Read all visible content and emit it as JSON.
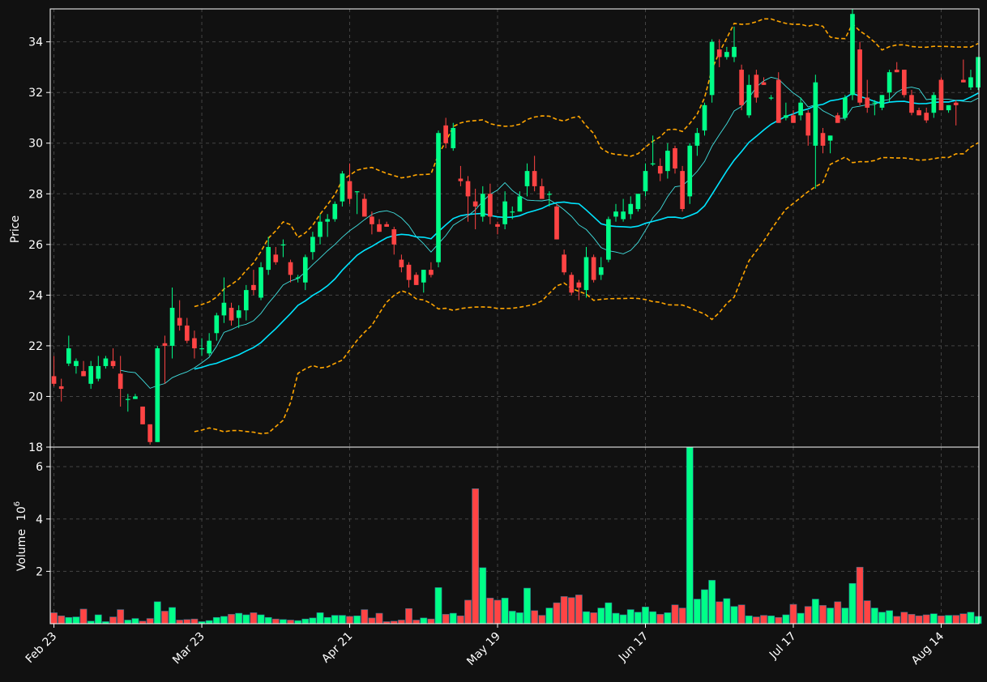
{
  "chart_data": {
    "type": "candlestick",
    "colors": {
      "background": "#111111",
      "up": "#00ff88",
      "down": "#ff4444",
      "grid": "#444444",
      "bollinger": "#ffa500",
      "ma_fast": "#40e0e0",
      "ma_slow": "#00e5ff",
      "axis": "#ffffff"
    },
    "price_axis": {
      "label": "Price",
      "ylim": [
        18,
        35.3
      ],
      "ticks": [
        18,
        20,
        22,
        24,
        26,
        28,
        30,
        32,
        34
      ]
    },
    "volume_axis": {
      "label": "Volume",
      "exponent_label": "10",
      "exponent": "6",
      "ylim": [
        0,
        6.5
      ],
      "ticks": [
        2,
        4,
        6
      ]
    },
    "x_axis": {
      "tick_labels": [
        {
          "label": "Feb 23",
          "index": 0
        },
        {
          "label": "Mar 23",
          "index": 20
        },
        {
          "label": "Apr 21",
          "index": 40
        },
        {
          "label": "May 19",
          "index": 60
        },
        {
          "label": "Jun 17",
          "index": 80
        },
        {
          "label": "Jul 17",
          "index": 100
        },
        {
          "label": "Aug 14",
          "index": 120
        }
      ]
    },
    "grid": true,
    "ohlc": [
      [
        20.8,
        21.6,
        20.4,
        20.5
      ],
      [
        20.4,
        20.7,
        19.8,
        20.3
      ],
      [
        21.3,
        22.4,
        21.2,
        21.9
      ],
      [
        21.2,
        21.5,
        20.9,
        21.4
      ],
      [
        21.0,
        21.4,
        20.8,
        20.8
      ],
      [
        20.5,
        21.4,
        20.3,
        21.2
      ],
      [
        20.7,
        21.6,
        20.6,
        21.2
      ],
      [
        21.2,
        21.6,
        21.1,
        21.5
      ],
      [
        21.4,
        21.9,
        21.1,
        21.2
      ],
      [
        20.9,
        21.6,
        19.6,
        20.3
      ],
      [
        19.9,
        20.1,
        19.4,
        19.9
      ],
      [
        19.9,
        20.1,
        19.9,
        20.0
      ],
      [
        19.6,
        19.6,
        18.9,
        18.9
      ],
      [
        18.9,
        18.9,
        18.1,
        18.2
      ],
      [
        18.2,
        22.0,
        18.2,
        21.9
      ],
      [
        22.1,
        22.4,
        20.5,
        22.0
      ],
      [
        22.0,
        24.3,
        21.5,
        23.5
      ],
      [
        23.1,
        23.8,
        22.6,
        22.8
      ],
      [
        22.8,
        23.1,
        22.1,
        22.2
      ],
      [
        22.3,
        22.6,
        21.5,
        21.9
      ],
      [
        21.9,
        22.3,
        21.6,
        21.9
      ],
      [
        21.7,
        22.5,
        21.6,
        22.2
      ],
      [
        22.5,
        23.3,
        22.2,
        23.2
      ],
      [
        23.2,
        24.7,
        22.9,
        23.7
      ],
      [
        23.5,
        23.7,
        22.8,
        23.0
      ],
      [
        23.1,
        23.6,
        22.7,
        23.4
      ],
      [
        23.4,
        24.4,
        23.0,
        24.2
      ],
      [
        24.4,
        25.0,
        24.0,
        24.2
      ],
      [
        23.9,
        25.3,
        23.8,
        25.1
      ],
      [
        25.0,
        26.3,
        24.8,
        25.9
      ],
      [
        25.6,
        25.9,
        25.2,
        25.3
      ],
      [
        26.0,
        26.2,
        25.5,
        26.0
      ],
      [
        25.3,
        25.4,
        24.5,
        24.8
      ],
      [
        24.7,
        24.8,
        24.5,
        24.7
      ],
      [
        24.5,
        25.6,
        24.2,
        25.5
      ],
      [
        25.7,
        26.5,
        25.4,
        26.3
      ],
      [
        26.3,
        27.2,
        26.0,
        26.9
      ],
      [
        26.9,
        27.2,
        26.3,
        27.0
      ],
      [
        27.0,
        27.7,
        26.9,
        27.6
      ],
      [
        27.7,
        28.9,
        27.5,
        28.8
      ],
      [
        28.5,
        29.2,
        27.6,
        27.8
      ],
      [
        28.1,
        28.1,
        27.2,
        28.1
      ],
      [
        27.8,
        28.0,
        27.1,
        27.1
      ],
      [
        27.1,
        27.3,
        26.4,
        26.8
      ],
      [
        26.8,
        27.0,
        26.5,
        26.5
      ],
      [
        26.8,
        26.9,
        26.7,
        26.7
      ],
      [
        26.6,
        26.7,
        25.6,
        26.0
      ],
      [
        25.4,
        25.6,
        24.9,
        25.1
      ],
      [
        25.2,
        25.3,
        24.3,
        24.6
      ],
      [
        24.8,
        24.9,
        24.4,
        24.4
      ],
      [
        24.5,
        25.0,
        24.1,
        25.0
      ],
      [
        25.0,
        25.3,
        24.7,
        24.8
      ],
      [
        25.3,
        30.5,
        25.1,
        30.4
      ],
      [
        30.7,
        31.0,
        29.8,
        30.0
      ],
      [
        29.8,
        30.8,
        29.7,
        30.6
      ],
      [
        28.6,
        29.1,
        28.3,
        28.5
      ],
      [
        28.5,
        28.7,
        26.9,
        27.9
      ],
      [
        27.7,
        28.2,
        26.6,
        27.5
      ],
      [
        27.1,
        28.3,
        26.9,
        28.0
      ],
      [
        28.0,
        28.4,
        26.8,
        27.1
      ],
      [
        26.8,
        26.9,
        26.4,
        26.7
      ],
      [
        26.8,
        28.1,
        26.6,
        27.7
      ],
      [
        27.3,
        27.5,
        27.0,
        27.3
      ],
      [
        27.3,
        28.1,
        27.3,
        27.9
      ],
      [
        28.3,
        29.2,
        27.9,
        28.9
      ],
      [
        28.9,
        29.5,
        28.1,
        28.3
      ],
      [
        28.3,
        28.6,
        27.8,
        27.8
      ],
      [
        28.0,
        28.1,
        27.5,
        28.0
      ],
      [
        27.5,
        27.6,
        26.2,
        26.2
      ],
      [
        25.6,
        25.8,
        24.8,
        24.9
      ],
      [
        24.8,
        24.9,
        24.0,
        24.1
      ],
      [
        24.5,
        24.6,
        23.8,
        24.3
      ],
      [
        24.2,
        25.9,
        23.9,
        25.5
      ],
      [
        25.5,
        25.6,
        24.5,
        24.6
      ],
      [
        24.8,
        25.5,
        24.6,
        25.1
      ],
      [
        25.4,
        27.1,
        25.3,
        27.0
      ],
      [
        27.1,
        27.6,
        26.9,
        27.3
      ],
      [
        27.0,
        27.8,
        26.9,
        27.3
      ],
      [
        27.2,
        27.9,
        27.0,
        27.6
      ],
      [
        27.4,
        28.0,
        27.3,
        28.0
      ],
      [
        28.1,
        29.2,
        27.9,
        28.9
      ],
      [
        29.2,
        30.3,
        29.1,
        29.2
      ],
      [
        29.1,
        29.4,
        28.5,
        28.8
      ],
      [
        28.9,
        30.0,
        28.6,
        29.7
      ],
      [
        29.8,
        29.9,
        28.8,
        29.0
      ],
      [
        28.9,
        29.1,
        27.3,
        27.4
      ],
      [
        27.9,
        30.0,
        27.6,
        29.9
      ],
      [
        29.9,
        30.6,
        29.5,
        30.4
      ],
      [
        30.5,
        31.6,
        30.3,
        31.5
      ],
      [
        31.9,
        34.1,
        31.6,
        34.0
      ],
      [
        33.7,
        34.1,
        33.0,
        33.4
      ],
      [
        33.4,
        33.8,
        33.3,
        33.6
      ],
      [
        33.4,
        34.6,
        33.2,
        33.8
      ],
      [
        32.9,
        33.1,
        31.3,
        31.5
      ],
      [
        31.1,
        32.7,
        31.0,
        32.3
      ],
      [
        32.7,
        32.9,
        31.6,
        31.8
      ],
      [
        32.4,
        32.6,
        32.3,
        32.3
      ],
      [
        31.8,
        31.9,
        31.7,
        31.8
      ],
      [
        32.5,
        32.8,
        30.8,
        30.8
      ],
      [
        31.0,
        31.6,
        30.9,
        31.1
      ],
      [
        31.1,
        31.3,
        30.8,
        30.8
      ],
      [
        31.1,
        31.8,
        30.9,
        31.6
      ],
      [
        31.2,
        31.3,
        29.9,
        30.3
      ],
      [
        29.9,
        32.7,
        28.2,
        32.4
      ],
      [
        30.4,
        30.6,
        29.6,
        29.9
      ],
      [
        30.1,
        30.3,
        29.6,
        30.3
      ],
      [
        31.1,
        31.2,
        30.8,
        30.8
      ],
      [
        31.0,
        31.9,
        30.9,
        31.8
      ],
      [
        31.9,
        35.3,
        31.7,
        35.1
      ],
      [
        33.7,
        34.0,
        31.5,
        31.6
      ],
      [
        31.8,
        32.5,
        31.2,
        31.4
      ],
      [
        31.6,
        31.7,
        31.1,
        31.6
      ],
      [
        31.4,
        31.9,
        31.3,
        31.9
      ],
      [
        32.0,
        32.9,
        31.6,
        32.8
      ],
      [
        32.9,
        33.2,
        32.8,
        32.8
      ],
      [
        32.9,
        32.9,
        31.8,
        31.9
      ],
      [
        31.9,
        32.1,
        31.1,
        31.2
      ],
      [
        31.3,
        31.4,
        31.1,
        31.1
      ],
      [
        31.2,
        31.4,
        30.8,
        30.9
      ],
      [
        31.2,
        32.0,
        31.0,
        31.9
      ],
      [
        32.5,
        32.6,
        31.3,
        31.3
      ],
      [
        31.3,
        31.5,
        31.2,
        31.5
      ],
      [
        31.6,
        31.7,
        30.7,
        31.5
      ],
      [
        32.5,
        33.3,
        32.4,
        32.4
      ],
      [
        32.2,
        32.9,
        32.1,
        32.6
      ],
      [
        32.2,
        33.4,
        32.1,
        33.4
      ]
    ],
    "volume": [
      0.42,
      0.3,
      0.24,
      0.26,
      0.56,
      0.1,
      0.34,
      0.08,
      0.26,
      0.54,
      0.14,
      0.2,
      0.1,
      0.2,
      0.84,
      0.48,
      0.62,
      0.14,
      0.16,
      0.18,
      0.08,
      0.12,
      0.24,
      0.28,
      0.36,
      0.4,
      0.34,
      0.42,
      0.34,
      0.24,
      0.18,
      0.16,
      0.14,
      0.12,
      0.18,
      0.22,
      0.42,
      0.24,
      0.32,
      0.32,
      0.28,
      0.3,
      0.54,
      0.22,
      0.4,
      0.08,
      0.1,
      0.14,
      0.58,
      0.14,
      0.22,
      0.18,
      1.38,
      0.36,
      0.4,
      0.3,
      0.9,
      5.16,
      2.14,
      0.98,
      0.9,
      0.98,
      0.48,
      0.42,
      1.36,
      0.5,
      0.32,
      0.6,
      0.8,
      1.04,
      1.0,
      1.1,
      0.46,
      0.42,
      0.6,
      0.8,
      0.4,
      0.34,
      0.54,
      0.44,
      0.64,
      0.46,
      0.36,
      0.42,
      0.72,
      0.6,
      6.74,
      0.94,
      1.3,
      1.66,
      0.84,
      0.96,
      0.66,
      0.72,
      0.3,
      0.26,
      0.32,
      0.3,
      0.24,
      0.34,
      0.74,
      0.4,
      0.66,
      0.94,
      0.7,
      0.6,
      0.84,
      0.6,
      1.54,
      2.16,
      0.88,
      0.6,
      0.44,
      0.5,
      0.28,
      0.44,
      0.36,
      0.3,
      0.34,
      0.38,
      0.3,
      0.32,
      0.32,
      0.38,
      0.44,
      0.28
    ]
  }
}
